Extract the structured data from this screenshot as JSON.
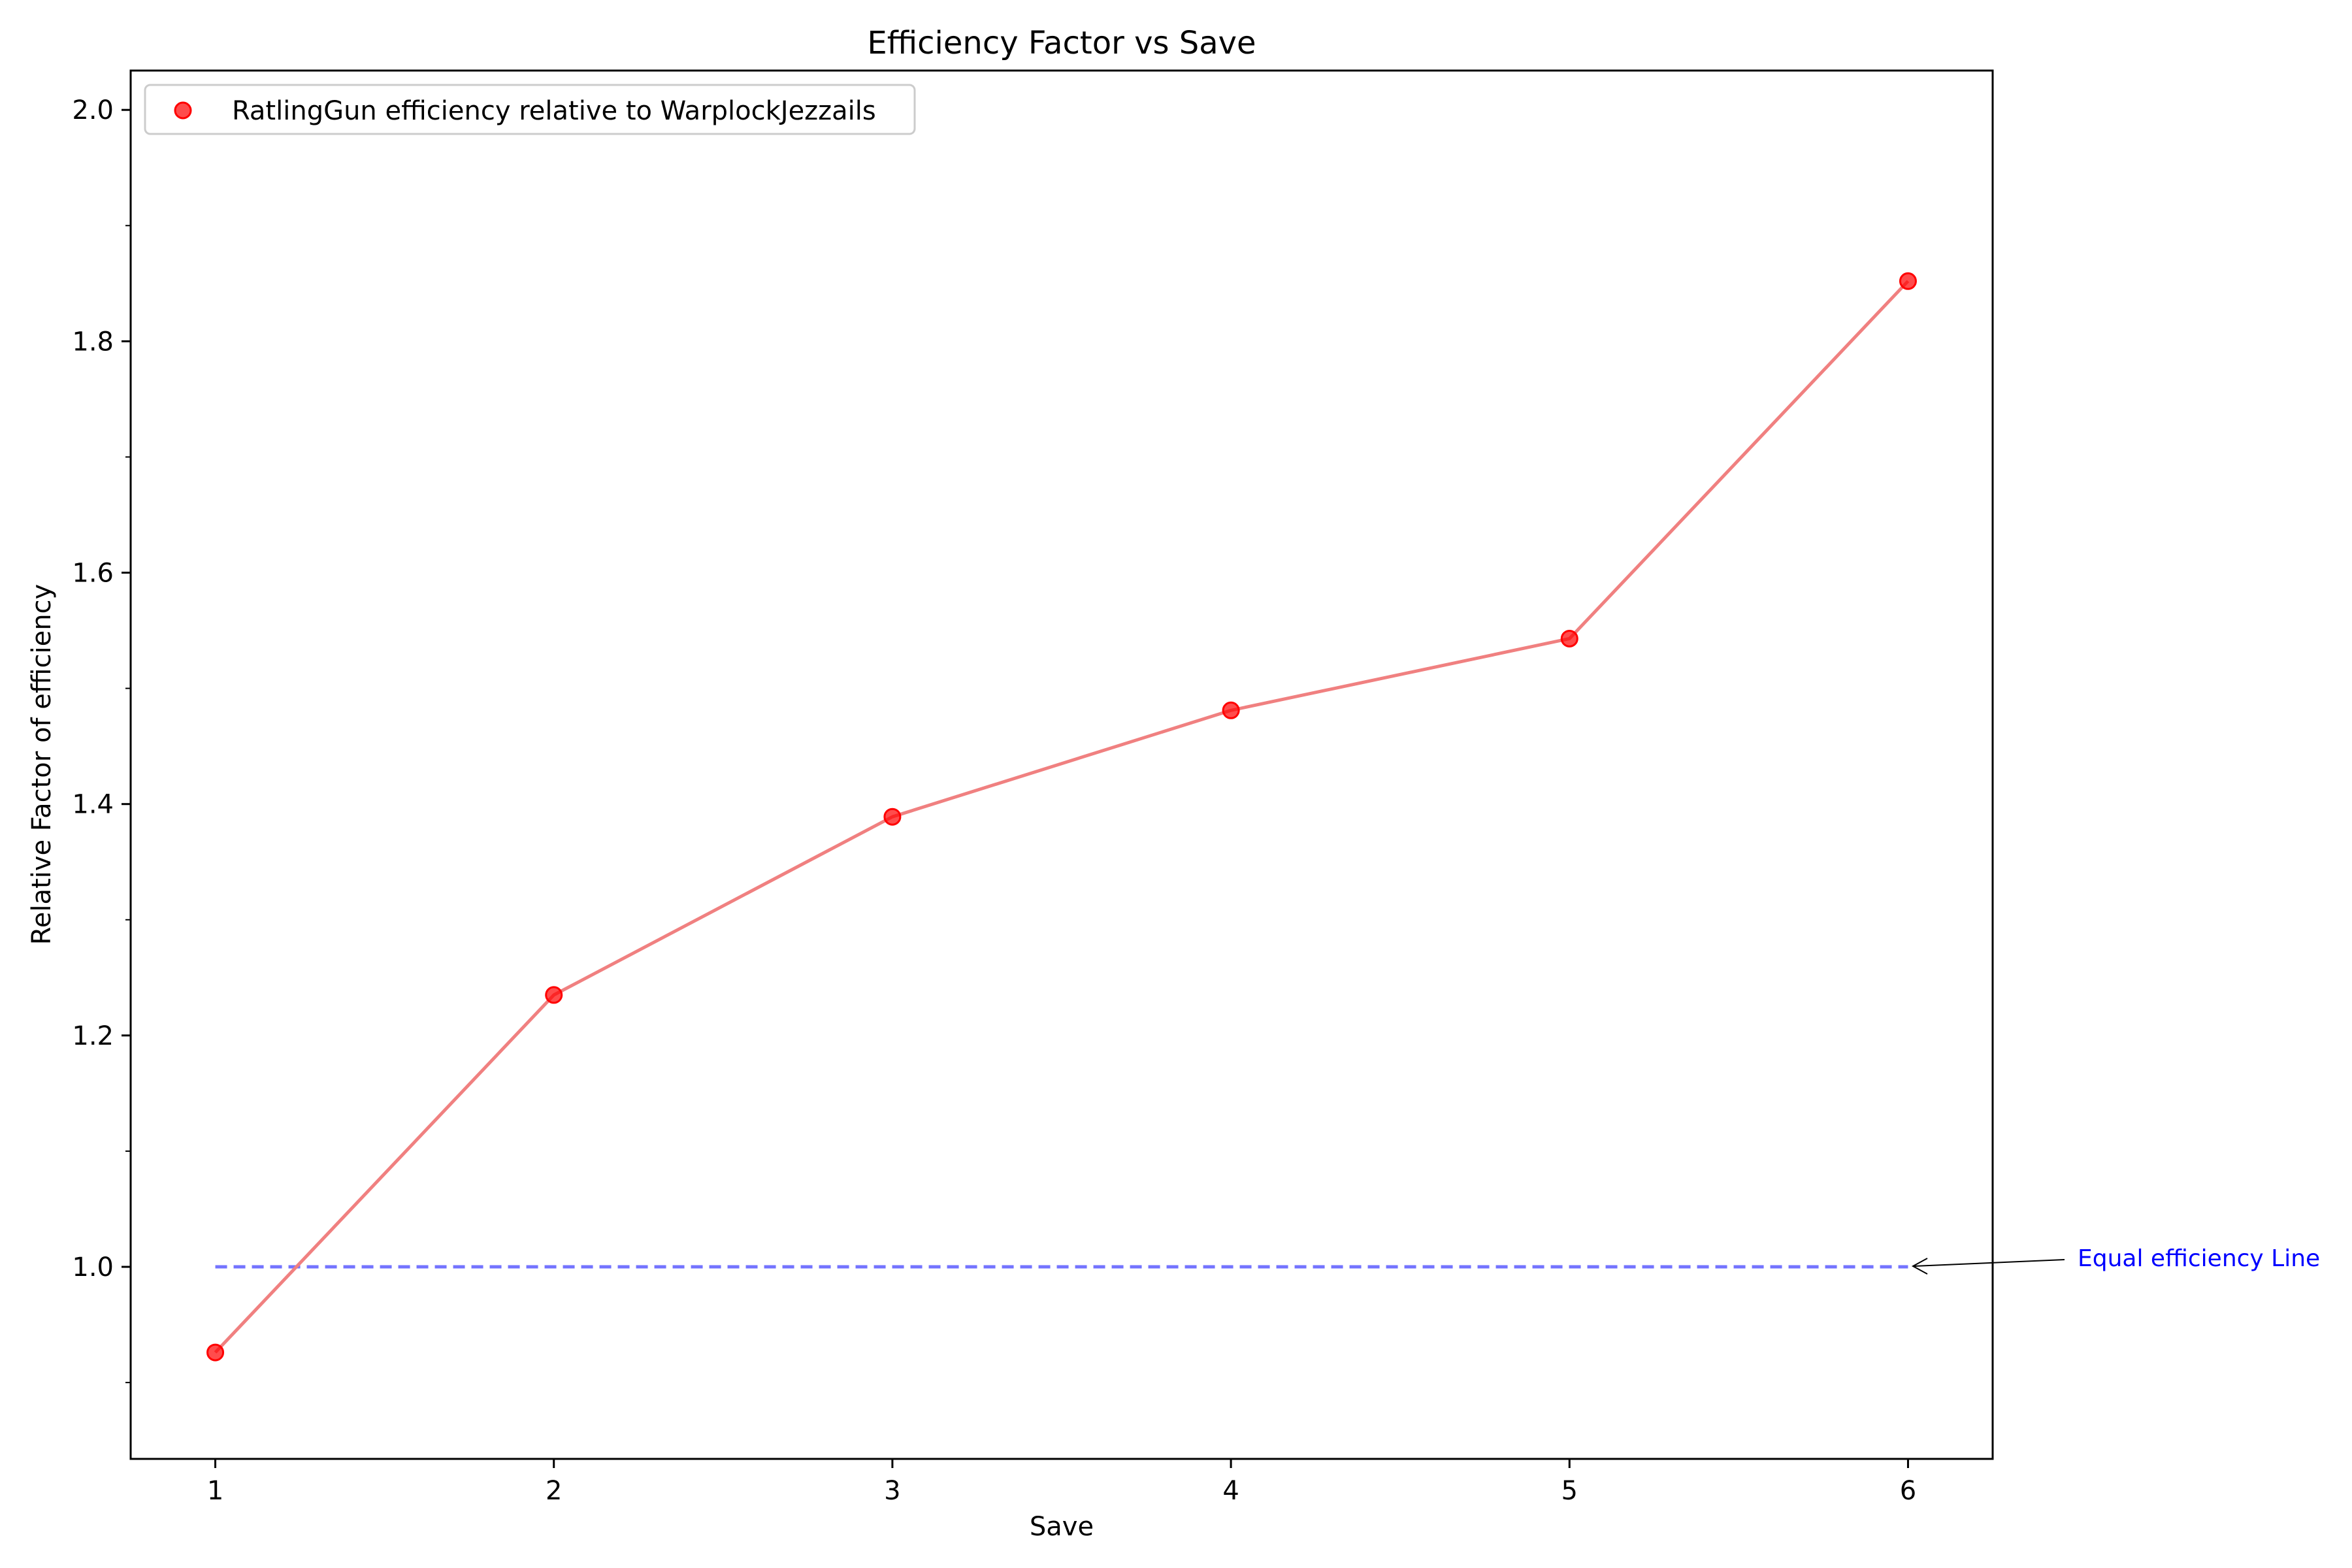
{
  "chart_data": {
    "type": "line",
    "title": "Efficiency Factor vs Save",
    "xlabel": "Save",
    "ylabel": "Relative Factor of efficiency",
    "xlim": [
      0.75,
      6.25
    ],
    "ylim": [
      0.834,
      2.034
    ],
    "x_ticks": [
      1,
      2,
      3,
      4,
      5,
      6
    ],
    "y_ticks": [
      1.0,
      1.2,
      1.4,
      1.6,
      1.8,
      2.0
    ],
    "y_tick_labels": [
      "1.0",
      "1.2",
      "1.4",
      "1.6",
      "1.8",
      "2.0"
    ],
    "y_minor_ticks": [
      0.9,
      1.1,
      1.3,
      1.5,
      1.7,
      1.9
    ],
    "grid": false,
    "legend_position": "upper-left",
    "series": [
      {
        "name": "RatlingGun efficiency relative to WarplockJezzails",
        "x": [
          1,
          2,
          3,
          4,
          5,
          6
        ],
        "y": [
          0.926,
          1.235,
          1.389,
          1.481,
          1.543,
          1.852
        ],
        "color": "#ff0000",
        "line_color": "#f08080"
      }
    ],
    "reference_line": {
      "y": 1.0,
      "x": [
        1,
        6
      ],
      "color": "#0000ff",
      "style": "dashed"
    },
    "annotation": {
      "text": "Equal efficiency Line",
      "color": "#0000ff",
      "point": [
        6,
        1.0
      ]
    }
  }
}
